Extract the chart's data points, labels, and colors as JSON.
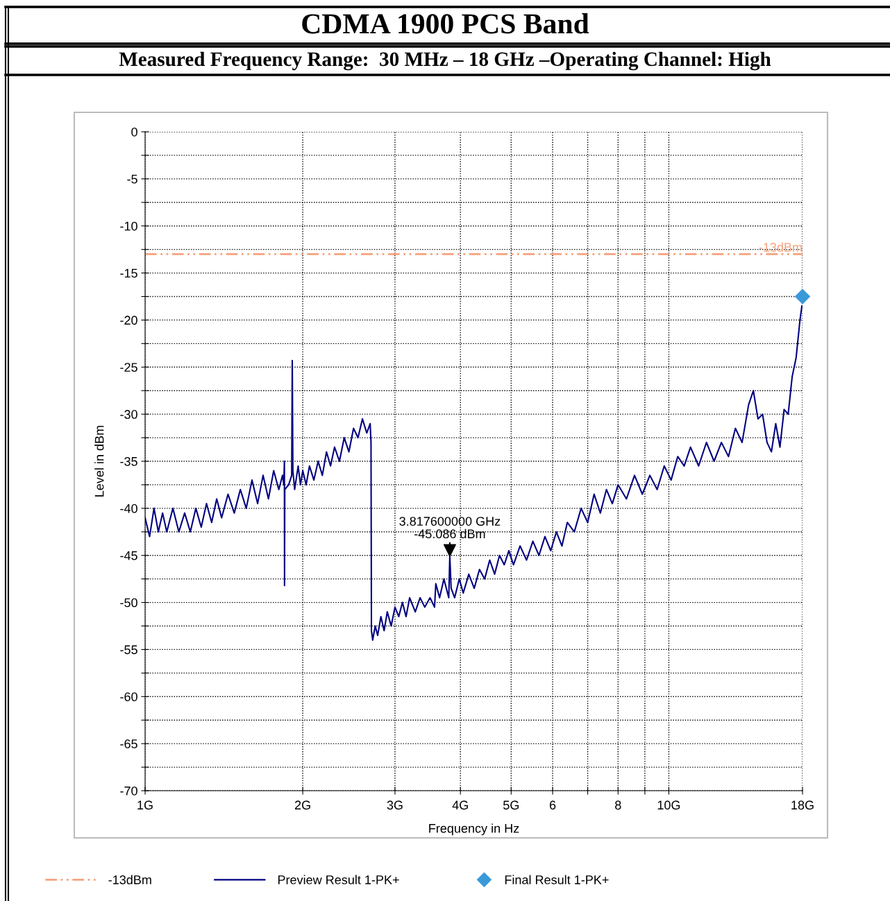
{
  "chart_data": {
    "type": "line",
    "title": "CDMA 1900 PCS Band",
    "subtitle": "Measured Frequency Range:  30 MHz – 18 GHz –Operating Channel: High",
    "xlabel": "Frequency in Hz",
    "ylabel": "Level in dBm",
    "log": "x",
    "grid": true,
    "legend": "bottom",
    "xlim": [
      1,
      18
    ],
    "xticks": [
      {
        "value": 1,
        "label": "1G"
      },
      {
        "value": 2,
        "label": "2G"
      },
      {
        "value": 3,
        "label": "3G"
      },
      {
        "value": 4,
        "label": "4G"
      },
      {
        "value": 5,
        "label": "5G"
      },
      6,
      {
        "value": 7,
        "label": null
      },
      8,
      {
        "value": 9,
        "label": null
      },
      {
        "value": 10,
        "label": "10G"
      },
      {
        "value": 18,
        "label": "18G"
      }
    ],
    "ylim": [
      -70,
      0
    ],
    "yticks": [
      0,
      {
        "value": -2.5,
        "label": null
      },
      -5,
      {
        "value": -7.5,
        "label": null
      },
      -10,
      {
        "value": -12.5,
        "label": null
      },
      -15,
      {
        "value": -17.5,
        "label": null
      },
      -20,
      {
        "value": -22.5,
        "label": null
      },
      -25,
      {
        "value": -27.5,
        "label": null
      },
      -30,
      {
        "value": -32.5,
        "label": null
      },
      -35,
      {
        "value": -37.5,
        "label": null
      },
      -40,
      {
        "value": -42.5,
        "label": null
      },
      -45,
      {
        "value": -47.5,
        "label": null
      },
      -50,
      {
        "value": -52.5,
        "label": null
      },
      -55,
      {
        "value": -57.5,
        "label": null
      },
      -60,
      {
        "value": -62.5,
        "label": null
      },
      -65,
      {
        "value": -67.5,
        "label": null
      },
      -70
    ],
    "ref_lines": [
      {
        "axis": "y",
        "value": -13,
        "label": "-13dBm",
        "color": "#f7a27c",
        "line_style": "dashdotdot"
      }
    ],
    "annotations": [
      {
        "text": "3.817600000 GHz\n-45.086 dBm",
        "x": 3.8176,
        "y": -45.086
      }
    ],
    "series": [
      {
        "name": "Preview Result 1-PK+",
        "color": "#000080",
        "marker": "none",
        "x": [
          1.0,
          1.02,
          1.04,
          1.06,
          1.08,
          1.1,
          1.13,
          1.16,
          1.19,
          1.22,
          1.25,
          1.28,
          1.31,
          1.34,
          1.37,
          1.4,
          1.44,
          1.48,
          1.52,
          1.56,
          1.6,
          1.64,
          1.68,
          1.72,
          1.76,
          1.8,
          1.83,
          1.84,
          1.845,
          1.846,
          1.848,
          1.88,
          1.905,
          1.91,
          1.915,
          1.93,
          1.96,
          1.98,
          2.0,
          2.03,
          2.06,
          2.1,
          2.14,
          2.18,
          2.22,
          2.26,
          2.3,
          2.35,
          2.4,
          2.45,
          2.5,
          2.55,
          2.6,
          2.65,
          2.69,
          2.7,
          2.705,
          2.72,
          2.75,
          2.78,
          2.82,
          2.86,
          2.9,
          2.95,
          3.0,
          3.05,
          3.1,
          3.15,
          3.2,
          3.28,
          3.35,
          3.42,
          3.5,
          3.57,
          3.59,
          3.65,
          3.72,
          3.8,
          3.8176,
          3.84,
          3.9,
          3.98,
          4.05,
          4.15,
          4.25,
          4.35,
          4.45,
          4.55,
          4.65,
          4.75,
          4.85,
          4.95,
          5.05,
          5.2,
          5.35,
          5.5,
          5.65,
          5.8,
          5.95,
          6.1,
          6.25,
          6.4,
          6.6,
          6.8,
          7.0,
          7.2,
          7.4,
          7.6,
          7.8,
          8.0,
          8.3,
          8.6,
          8.9,
          9.2,
          9.5,
          9.8,
          10.1,
          10.4,
          10.7,
          11.0,
          11.4,
          11.8,
          12.2,
          12.6,
          13.0,
          13.4,
          13.8,
          14.2,
          14.5,
          14.8,
          15.1,
          15.4,
          15.7,
          16.0,
          16.3,
          16.6,
          16.9,
          17.2,
          17.5,
          17.8,
          17.95
        ],
        "values": [
          -41,
          -43,
          -40,
          -42.5,
          -40.5,
          -42.5,
          -40,
          -42.5,
          -40.5,
          -42.5,
          -40,
          -42,
          -39.5,
          -41.5,
          -39,
          -41,
          -38.5,
          -40.5,
          -38,
          -40,
          -37,
          -39.5,
          -36.5,
          -39,
          -36,
          -38,
          -36.5,
          -37.5,
          -35,
          -48.2,
          -38,
          -37.5,
          -36.5,
          -24.3,
          -36,
          -38,
          -35.5,
          -37.5,
          -36,
          -37.5,
          -35.5,
          -37,
          -35,
          -36.5,
          -34,
          -35.5,
          -33.5,
          -35,
          -32.5,
          -34,
          -31.5,
          -32.5,
          -30.5,
          -32,
          -31,
          -33,
          -53,
          -54,
          -52.5,
          -53.5,
          -51.5,
          -53,
          -51,
          -52.5,
          -50.5,
          -51.5,
          -50,
          -51.5,
          -49.5,
          -51,
          -49.5,
          -50.5,
          -49.5,
          -50.5,
          -48,
          -49.5,
          -47.5,
          -49.5,
          -45.086,
          -48.5,
          -49.5,
          -47.5,
          -49,
          -47,
          -48.5,
          -46.5,
          -47.5,
          -45.5,
          -47,
          -45,
          -46,
          -44.5,
          -46,
          -44,
          -45.5,
          -43.5,
          -45,
          -43,
          -44.5,
          -42.5,
          -44,
          -41.5,
          -42.5,
          -40,
          -41.5,
          -38.5,
          -40.5,
          -38,
          -39.5,
          -37.5,
          -39,
          -36.5,
          -38.5,
          -36.5,
          -38,
          -35.5,
          -37,
          -34.5,
          -35.5,
          -33.5,
          -35.5,
          -33,
          -35,
          -33,
          -34.5,
          -31.5,
          -33,
          -29,
          -27.5,
          -30.5,
          -30,
          -33,
          -34,
          -31,
          -33.5,
          -29.5,
          -30,
          -26,
          -24,
          -20,
          -18.5
        ]
      },
      {
        "name": "Final Result 1-PK+",
        "type": "scatter",
        "color": "#3a9ad9",
        "marker": "diamond",
        "x": [
          18
        ],
        "values": [
          -17.5
        ]
      }
    ]
  }
}
